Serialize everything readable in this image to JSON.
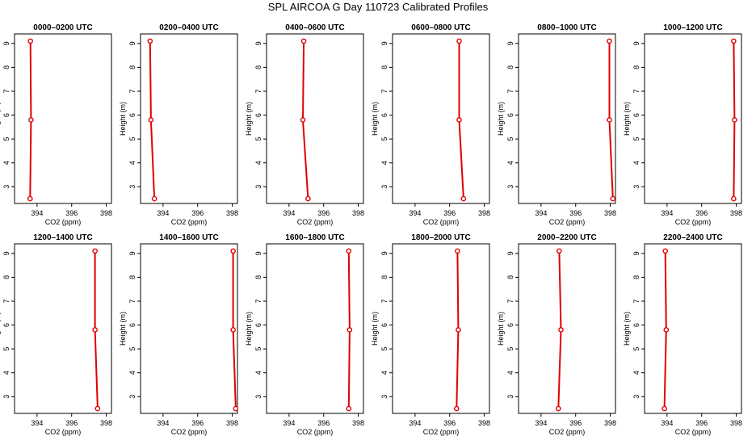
{
  "figure": {
    "title": "SPL AIRCOA G  Day 110723  Calibrated Profiles"
  },
  "style": {
    "line_color": "#e00000",
    "marker_color": "#e00000",
    "axis_color": "#000000"
  },
  "chart_data": [
    {
      "type": "line",
      "title": "0000–0200 UTC",
      "xlabel": "CO2 (ppm)",
      "ylabel": "Height (m)",
      "xlim": [
        392.7,
        398.3
      ],
      "ylim": [
        2.3,
        9.4
      ],
      "xticks": [
        394,
        396,
        398
      ],
      "yticks": [
        3,
        4,
        5,
        6,
        7,
        8,
        9
      ],
      "x": [
        393.6,
        393.65,
        393.62
      ],
      "y": [
        2.5,
        5.8,
        9.1
      ]
    },
    {
      "type": "line",
      "title": "0200–0400 UTC",
      "xlabel": "CO2 (ppm)",
      "ylabel": "Height (m)",
      "xlim": [
        392.7,
        398.3
      ],
      "ylim": [
        2.3,
        9.4
      ],
      "xticks": [
        394,
        396,
        398
      ],
      "yticks": [
        3,
        4,
        5,
        6,
        7,
        8,
        9
      ],
      "x": [
        393.5,
        393.3,
        393.25
      ],
      "y": [
        2.5,
        5.8,
        9.1
      ]
    },
    {
      "type": "line",
      "title": "0400–0600 UTC",
      "xlabel": "CO2 (ppm)",
      "ylabel": "Height (m)",
      "xlim": [
        392.7,
        398.3
      ],
      "ylim": [
        2.3,
        9.4
      ],
      "xticks": [
        394,
        396,
        398
      ],
      "yticks": [
        3,
        4,
        5,
        6,
        7,
        8,
        9
      ],
      "x": [
        395.1,
        394.8,
        394.85
      ],
      "y": [
        2.5,
        5.8,
        9.1
      ]
    },
    {
      "type": "line",
      "title": "0600–0800 UTC",
      "xlabel": "CO2 (ppm)",
      "ylabel": "Height (m)",
      "xlim": [
        392.7,
        398.3
      ],
      "ylim": [
        2.3,
        9.4
      ],
      "xticks": [
        394,
        396,
        398
      ],
      "yticks": [
        3,
        4,
        5,
        6,
        7,
        8,
        9
      ],
      "x": [
        396.8,
        396.55,
        396.55
      ],
      "y": [
        2.5,
        5.8,
        9.1
      ]
    },
    {
      "type": "line",
      "title": "0800–1000 UTC",
      "xlabel": "CO2 (ppm)",
      "ylabel": "Height (m)",
      "xlim": [
        392.7,
        398.3
      ],
      "ylim": [
        2.3,
        9.4
      ],
      "xticks": [
        394,
        396,
        398
      ],
      "yticks": [
        3,
        4,
        5,
        6,
        7,
        8,
        9
      ],
      "x": [
        398.15,
        397.95,
        397.95
      ],
      "y": [
        2.5,
        5.8,
        9.1
      ]
    },
    {
      "type": "line",
      "title": "1000–1200 UTC",
      "xlabel": "CO2 (ppm)",
      "ylabel": "Height (m)",
      "xlim": [
        392.7,
        398.3
      ],
      "ylim": [
        2.3,
        9.4
      ],
      "xticks": [
        394,
        396,
        398
      ],
      "yticks": [
        3,
        4,
        5,
        6,
        7,
        8,
        9
      ],
      "x": [
        397.85,
        397.9,
        397.85
      ],
      "y": [
        2.5,
        5.8,
        9.1
      ]
    },
    {
      "type": "line",
      "title": "1200–1400 UTC",
      "xlabel": "CO2 (ppm)",
      "ylabel": "Height (m)",
      "xlim": [
        392.7,
        398.3
      ],
      "ylim": [
        2.3,
        9.4
      ],
      "xticks": [
        394,
        396,
        398
      ],
      "yticks": [
        3,
        4,
        5,
        6,
        7,
        8,
        9
      ],
      "x": [
        397.5,
        397.35,
        397.35
      ],
      "y": [
        2.5,
        5.8,
        9.1
      ]
    },
    {
      "type": "line",
      "title": "1400–1600 UTC",
      "xlabel": "CO2 (ppm)",
      "ylabel": "Height (m)",
      "xlim": [
        392.7,
        398.3
      ],
      "ylim": [
        2.3,
        9.4
      ],
      "xticks": [
        394,
        396,
        398
      ],
      "yticks": [
        3,
        4,
        5,
        6,
        7,
        8,
        9
      ],
      "x": [
        398.2,
        398.05,
        398.05
      ],
      "y": [
        2.5,
        5.8,
        9.1
      ]
    },
    {
      "type": "line",
      "title": "1600–1800 UTC",
      "xlabel": "CO2 (ppm)",
      "ylabel": "Height (m)",
      "xlim": [
        392.7,
        398.3
      ],
      "ylim": [
        2.3,
        9.4
      ],
      "xticks": [
        394,
        396,
        398
      ],
      "yticks": [
        3,
        4,
        5,
        6,
        7,
        8,
        9
      ],
      "x": [
        397.45,
        397.5,
        397.45
      ],
      "y": [
        2.5,
        5.8,
        9.1
      ]
    },
    {
      "type": "line",
      "title": "1800–2000 UTC",
      "xlabel": "CO2 (ppm)",
      "ylabel": "Height (m)",
      "xlim": [
        392.7,
        398.3
      ],
      "ylim": [
        2.3,
        9.4
      ],
      "xticks": [
        394,
        396,
        398
      ],
      "yticks": [
        3,
        4,
        5,
        6,
        7,
        8,
        9
      ],
      "x": [
        396.4,
        396.5,
        396.45
      ],
      "y": [
        2.5,
        5.8,
        9.1
      ]
    },
    {
      "type": "line",
      "title": "2000–2200 UTC",
      "xlabel": "CO2 (ppm)",
      "ylabel": "Height (m)",
      "xlim": [
        392.7,
        398.3
      ],
      "ylim": [
        2.3,
        9.4
      ],
      "xticks": [
        394,
        396,
        398
      ],
      "yticks": [
        3,
        4,
        5,
        6,
        7,
        8,
        9
      ],
      "x": [
        395.0,
        395.15,
        395.05
      ],
      "y": [
        2.5,
        5.8,
        9.1
      ]
    },
    {
      "type": "line",
      "title": "2200–2400 UTC",
      "xlabel": "CO2 (ppm)",
      "ylabel": "Height (m)",
      "xlim": [
        392.7,
        398.3
      ],
      "ylim": [
        2.3,
        9.4
      ],
      "xticks": [
        394,
        396,
        398
      ],
      "yticks": [
        3,
        4,
        5,
        6,
        7,
        8,
        9
      ],
      "x": [
        393.85,
        393.95,
        393.9
      ],
      "y": [
        2.5,
        5.8,
        9.1
      ]
    }
  ]
}
